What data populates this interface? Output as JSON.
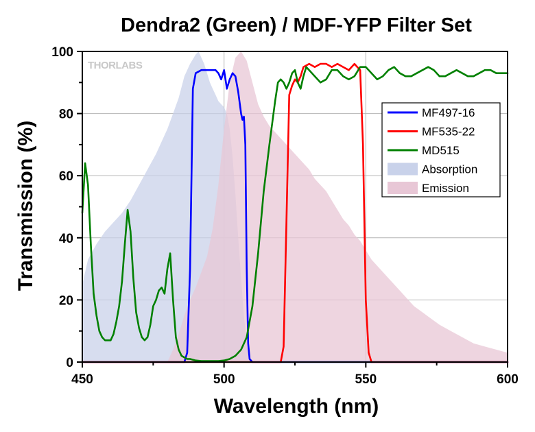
{
  "chart_data": {
    "type": "area",
    "title": "Dendra2 (Green) / MDF-YFP Filter Set",
    "xlabel": "Wavelength (nm)",
    "ylabel": "Transmission (%)",
    "xlim": [
      450,
      600
    ],
    "ylim": [
      0,
      100
    ],
    "xticks": [
      450,
      500,
      550,
      600
    ],
    "yticks": [
      0,
      20,
      40,
      60,
      80,
      100
    ],
    "grid": true,
    "legend_position": "top-right",
    "watermark": "THORLABS",
    "series": [
      {
        "name": "MF497-16",
        "kind": "line",
        "color": "#0000ff",
        "x": [
          450,
          486,
          487,
          488,
          489,
          490,
          492,
          494,
          496,
          497,
          498,
          499,
          500,
          501,
          502,
          503,
          504,
          505,
          506,
          506.5,
          507,
          507.5,
          508,
          508.5,
          509,
          510,
          600
        ],
        "y": [
          0,
          0,
          3,
          30,
          88,
          93,
          94,
          94,
          94,
          94,
          93,
          91,
          94,
          88,
          91,
          93,
          92,
          87,
          80,
          78,
          79,
          70,
          30,
          6,
          1,
          0,
          0
        ]
      },
      {
        "name": "MF535-22",
        "kind": "line",
        "color": "#ff0000",
        "x": [
          450,
          520,
          521,
          522,
          523,
          524,
          525,
          526,
          527,
          528,
          530,
          532,
          534,
          536,
          538,
          540,
          542,
          544,
          546,
          547,
          548,
          549,
          550,
          551,
          552,
          600
        ],
        "y": [
          0,
          0,
          5,
          45,
          86,
          89,
          91,
          90,
          92,
          95,
          96,
          95,
          96,
          96,
          95,
          96,
          95,
          94,
          96,
          95,
          94,
          70,
          20,
          3,
          0,
          0
        ]
      },
      {
        "name": "MD515",
        "kind": "line",
        "color": "#008000",
        "x": [
          450,
          451,
          452,
          453,
          454,
          455,
          456,
          457,
          458,
          459,
          460,
          461,
          462,
          463,
          464,
          465,
          466,
          467,
          468,
          469,
          470,
          471,
          472,
          473,
          474,
          475,
          476,
          477,
          478,
          479,
          480,
          481,
          482,
          483,
          484,
          485,
          486,
          487,
          488,
          490,
          492,
          495,
          498,
          500,
          502,
          504,
          506,
          508,
          510,
          512,
          514,
          516,
          518,
          519,
          520,
          521,
          522,
          523,
          524,
          525,
          526,
          527,
          528,
          529,
          530,
          532,
          534,
          536,
          538,
          540,
          542,
          544,
          546,
          548,
          550,
          552,
          554,
          556,
          558,
          560,
          562,
          564,
          566,
          568,
          570,
          572,
          574,
          576,
          578,
          580,
          582,
          584,
          586,
          588,
          590,
          592,
          594,
          596,
          598,
          600
        ],
        "y": [
          48,
          64,
          57,
          38,
          22,
          15,
          10,
          8,
          7,
          7,
          7,
          9,
          13,
          18,
          26,
          38,
          49,
          42,
          27,
          16,
          11,
          8,
          7,
          8,
          12,
          18,
          20,
          23,
          24,
          22,
          30,
          35,
          20,
          8,
          4,
          2,
          1.5,
          1,
          1,
          0.5,
          0.3,
          0.3,
          0.3,
          0.5,
          1,
          2,
          4,
          8,
          18,
          35,
          55,
          70,
          84,
          90,
          91,
          90,
          88,
          90,
          93,
          94,
          90,
          88,
          92,
          95,
          94,
          92,
          90,
          91,
          94,
          94,
          92,
          91,
          92,
          95,
          95,
          93,
          91,
          92,
          94,
          95,
          93,
          92,
          92,
          93,
          94,
          95,
          94,
          92,
          92,
          93,
          94,
          93,
          92,
          92,
          93,
          94,
          94,
          93,
          93,
          93
        ]
      },
      {
        "name": "Absorption",
        "kind": "area",
        "color": "#c9d2ea",
        "x": [
          450,
          452,
          455,
          458,
          461,
          464,
          467,
          470,
          473,
          476,
          478,
          480,
          482,
          484,
          486,
          488,
          490,
          491,
          492,
          493,
          494,
          495,
          496,
          497,
          498,
          499,
          500,
          501,
          502,
          503,
          504,
          505,
          506,
          507,
          508,
          509,
          510
        ],
        "y": [
          25,
          33,
          38,
          42,
          45,
          48,
          52,
          57,
          62,
          67,
          71,
          75,
          80,
          85,
          92,
          96,
          99,
          100,
          98,
          96,
          93,
          90,
          88,
          86,
          84,
          83,
          82,
          80,
          75,
          66,
          54,
          40,
          27,
          15,
          6,
          1,
          0
        ]
      },
      {
        "name": "Emission",
        "kind": "area",
        "color": "#e8c7d6",
        "x": [
          480,
          482,
          484,
          486,
          488,
          490,
          492,
          494,
          496,
          498,
          500,
          502,
          504,
          506,
          508,
          510,
          512,
          514,
          516,
          518,
          520,
          522,
          524,
          526,
          528,
          530,
          532,
          534,
          536,
          538,
          540,
          542,
          544,
          546,
          548,
          550,
          552,
          555,
          558,
          561,
          564,
          567,
          570,
          573,
          576,
          580,
          584,
          588,
          592,
          596,
          600
        ],
        "y": [
          0,
          4,
          9,
          15,
          20,
          24,
          29,
          34,
          43,
          57,
          75,
          90,
          98,
          100,
          97,
          90,
          83,
          79,
          76,
          74,
          72,
          70,
          68,
          66,
          64,
          62,
          59,
          57,
          55,
          52,
          49,
          46,
          44,
          41,
          39,
          36,
          33,
          30,
          27,
          24,
          21,
          18,
          16,
          14,
          12,
          10,
          8,
          6,
          5,
          4,
          3
        ]
      }
    ]
  }
}
